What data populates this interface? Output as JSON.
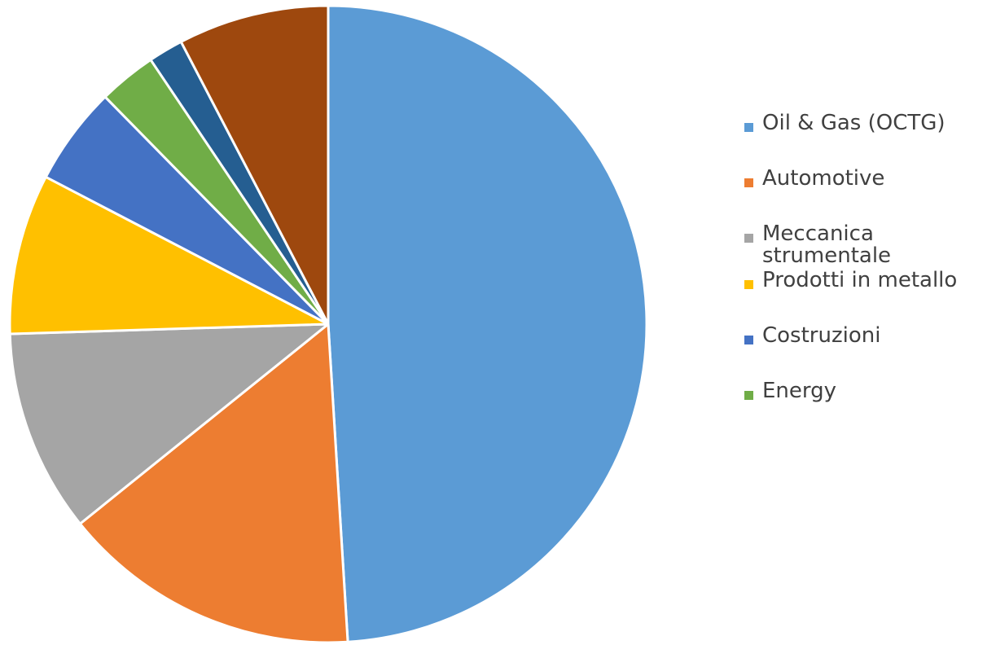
{
  "chart_data": {
    "type": "pie",
    "title": "",
    "start_angle_deg": 0,
    "direction": "clockwise",
    "slices": [
      {
        "label": "Oil & Gas (OCTG)",
        "value": 50.0,
        "color": "#5B9BD5"
      },
      {
        "label": "Automotive",
        "value": 15.5,
        "color": "#ED7D31"
      },
      {
        "label": "Meccanica strumentale",
        "value": 10.5,
        "color": "#A5A5A5"
      },
      {
        "label": "Prodotti in metallo",
        "value": 8.3,
        "color": "#FFC000"
      },
      {
        "label": "Costruzioni",
        "value": 5.1,
        "color": "#4472C4"
      },
      {
        "label": "Energy",
        "value": 3.0,
        "color": "#70AD47"
      },
      {
        "label": "",
        "value": 1.8,
        "color": "#255E91"
      },
      {
        "label": "",
        "value": 7.8,
        "color": "#9E480E"
      }
    ],
    "legend": {
      "placement": "right",
      "entries": [
        "Oil & Gas (OCTG)",
        "Automotive",
        "Meccanica strumentale",
        "Prodotti in metallo",
        "Costruzioni",
        "Energy"
      ]
    }
  }
}
